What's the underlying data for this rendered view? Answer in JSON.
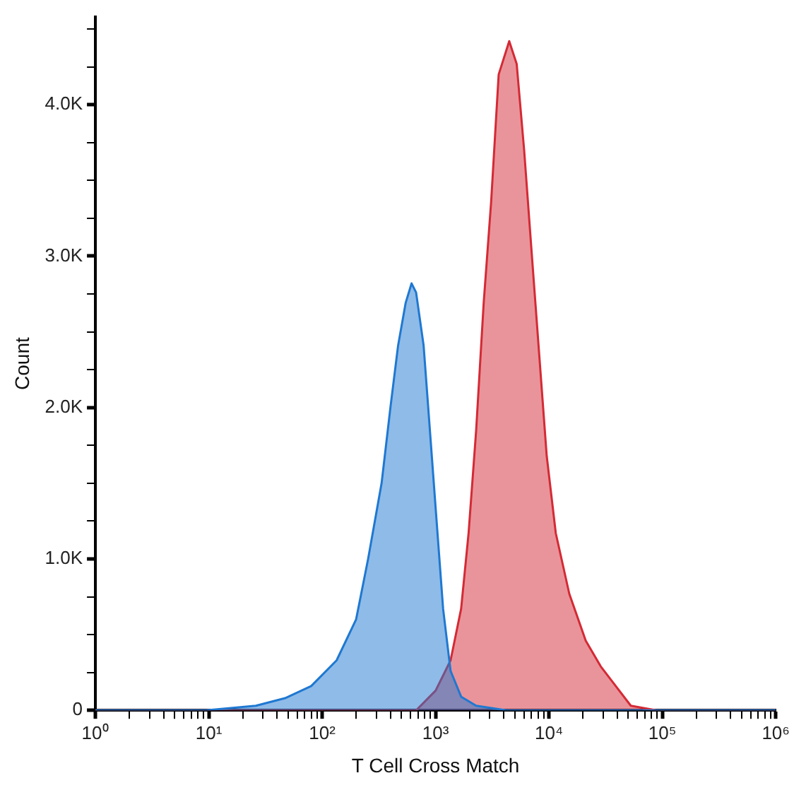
{
  "chart_data": {
    "type": "area",
    "xlabel": "T Cell Cross Match",
    "ylabel": "Count",
    "log": "x",
    "grid": false,
    "legend": false,
    "marker": "none",
    "xlim": [
      1,
      1000000
    ],
    "xticks": [
      {
        "value": 1,
        "label": "10⁰"
      },
      {
        "value": 2,
        "label": null
      },
      {
        "value": 3,
        "label": null
      },
      {
        "value": 4,
        "label": null
      },
      {
        "value": 5,
        "label": null
      },
      {
        "value": 6,
        "label": null
      },
      {
        "value": 7,
        "label": null
      },
      {
        "value": 8,
        "label": null
      },
      {
        "value": 9,
        "label": null
      },
      {
        "value": 10,
        "label": "10¹"
      },
      {
        "value": 20,
        "label": null
      },
      {
        "value": 30,
        "label": null
      },
      {
        "value": 40,
        "label": null
      },
      {
        "value": 50,
        "label": null
      },
      {
        "value": 60,
        "label": null
      },
      {
        "value": 70,
        "label": null
      },
      {
        "value": 80,
        "label": null
      },
      {
        "value": 90,
        "label": null
      },
      {
        "value": 100,
        "label": "10²"
      },
      {
        "value": 200,
        "label": null
      },
      {
        "value": 300,
        "label": null
      },
      {
        "value": 400,
        "label": null
      },
      {
        "value": 500,
        "label": null
      },
      {
        "value": 600,
        "label": null
      },
      {
        "value": 700,
        "label": null
      },
      {
        "value": 800,
        "label": null
      },
      {
        "value": 900,
        "label": null
      },
      {
        "value": 1000,
        "label": "10³"
      },
      {
        "value": 2000,
        "label": null
      },
      {
        "value": 3000,
        "label": null
      },
      {
        "value": 4000,
        "label": null
      },
      {
        "value": 5000,
        "label": null
      },
      {
        "value": 6000,
        "label": null
      },
      {
        "value": 7000,
        "label": null
      },
      {
        "value": 8000,
        "label": null
      },
      {
        "value": 9000,
        "label": null
      },
      {
        "value": 10000,
        "label": "10⁴"
      },
      {
        "value": 20000,
        "label": null
      },
      {
        "value": 30000,
        "label": null
      },
      {
        "value": 40000,
        "label": null
      },
      {
        "value": 50000,
        "label": null
      },
      {
        "value": 60000,
        "label": null
      },
      {
        "value": 70000,
        "label": null
      },
      {
        "value": 80000,
        "label": null
      },
      {
        "value": 90000,
        "label": null
      },
      {
        "value": 100000,
        "label": "10⁵"
      },
      {
        "value": 200000,
        "label": null
      },
      {
        "value": 300000,
        "label": null
      },
      {
        "value": 400000,
        "label": null
      },
      {
        "value": 500000,
        "label": null
      },
      {
        "value": 600000,
        "label": null
      },
      {
        "value": 700000,
        "label": null
      },
      {
        "value": 800000,
        "label": null
      },
      {
        "value": 900000,
        "label": null
      },
      {
        "value": 1000000,
        "label": "10⁶"
      }
    ],
    "ylim": [
      0,
      4580
    ],
    "yticks": [
      {
        "value": 0,
        "label": "0"
      },
      {
        "value": 250,
        "label": null
      },
      {
        "value": 500,
        "label": null
      },
      {
        "value": 750,
        "label": null
      },
      {
        "value": 1000,
        "label": "1.0K"
      },
      {
        "value": 1250,
        "label": null
      },
      {
        "value": 1500,
        "label": null
      },
      {
        "value": 1750,
        "label": null
      },
      {
        "value": 2000,
        "label": "2.0K"
      },
      {
        "value": 2250,
        "label": null
      },
      {
        "value": 2500,
        "label": null
      },
      {
        "value": 2750,
        "label": null
      },
      {
        "value": 3000,
        "label": "3.0K"
      },
      {
        "value": 3250,
        "label": null
      },
      {
        "value": 3500,
        "label": null
      },
      {
        "value": 3750,
        "label": null
      },
      {
        "value": 4000,
        "label": "4.0K"
      },
      {
        "value": 4250,
        "label": null
      },
      {
        "value": 4500,
        "label": null
      }
    ],
    "series": [
      {
        "color": "#1f78d1",
        "x": [
          1,
          9.4,
          26,
          47,
          80,
          134,
          199,
          254,
          334,
          401,
          467,
          544,
          614,
          673,
          784,
          859,
          1000,
          1165,
          1356,
          1679,
          2279,
          4200,
          1000000
        ],
        "values": [
          0,
          0,
          30,
          80,
          160,
          330,
          600,
          1000,
          1500,
          2010,
          2410,
          2690,
          2820,
          2760,
          2410,
          2010,
          1340,
          670,
          260,
          90,
          30,
          0,
          0
        ]
      },
      {
        "color": "#d42a35",
        "x": [
          1,
          673,
          1000,
          1356,
          1679,
          1954,
          2279,
          2655,
          3090,
          3600,
          4460,
          5190,
          6040,
          7040,
          8200,
          9550,
          11480,
          15100,
          21100,
          28600,
          38800,
          52700,
          88500,
          1000000
        ],
        "values": [
          0,
          0,
          130,
          330,
          670,
          1170,
          1850,
          2690,
          3360,
          4200,
          4420,
          4270,
          3700,
          3020,
          2350,
          1680,
          1170,
          770,
          460,
          290,
          160,
          30,
          0,
          0
        ]
      }
    ]
  }
}
